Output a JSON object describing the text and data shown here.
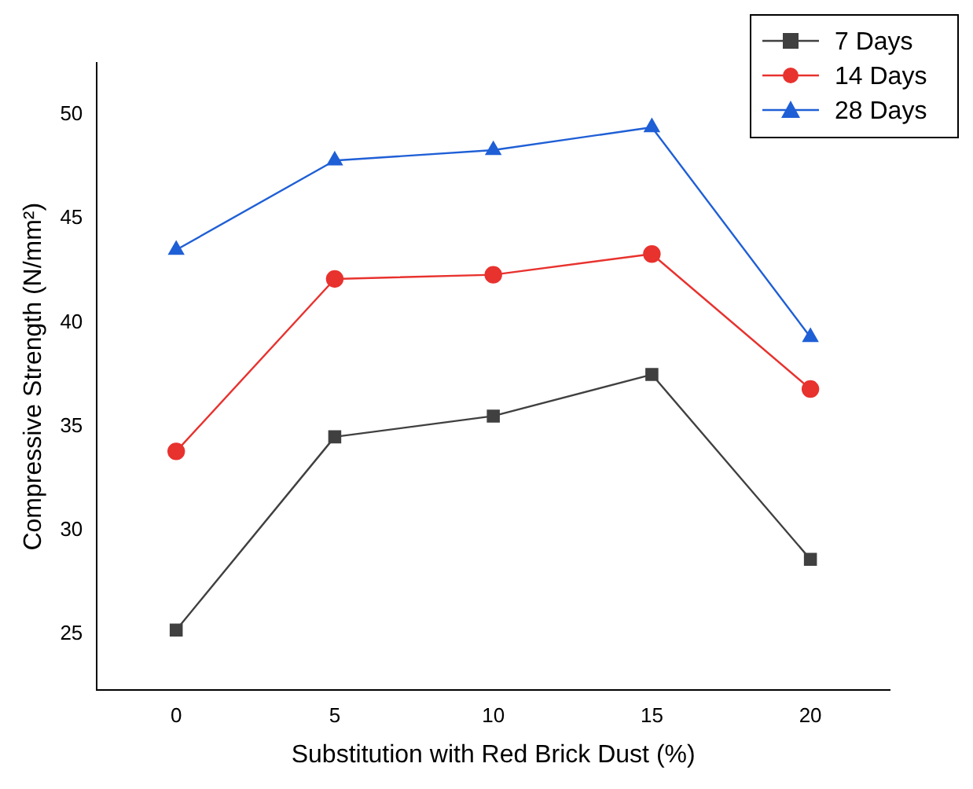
{
  "chart_data": {
    "type": "line",
    "xlabel": "Substitution with Red Brick Dust (%)",
    "ylabel": "Compressive Strength (N/mm²)",
    "x": [
      0,
      5,
      10,
      15,
      20
    ],
    "xlim": [
      -2.5,
      22.5
    ],
    "xticks": [
      0,
      5,
      10,
      15,
      20
    ],
    "ylim": [
      22.3,
      52.5
    ],
    "yticks": [
      25,
      30,
      35,
      40,
      45,
      50
    ],
    "grid": false,
    "legend": "top right",
    "series": [
      {
        "name": "7 Days",
        "color": "#404040",
        "marker": "square",
        "values": [
          25.2,
          34.5,
          35.5,
          37.5,
          28.6
        ]
      },
      {
        "name": "14 Days",
        "color": "#e8322e",
        "marker": "circle",
        "values": [
          33.8,
          42.1,
          42.3,
          43.3,
          36.8
        ]
      },
      {
        "name": "28 Days",
        "color": "#1f5fd6",
        "marker": "triangle",
        "values": [
          43.5,
          47.8,
          48.3,
          49.4,
          39.3
        ]
      }
    ]
  }
}
